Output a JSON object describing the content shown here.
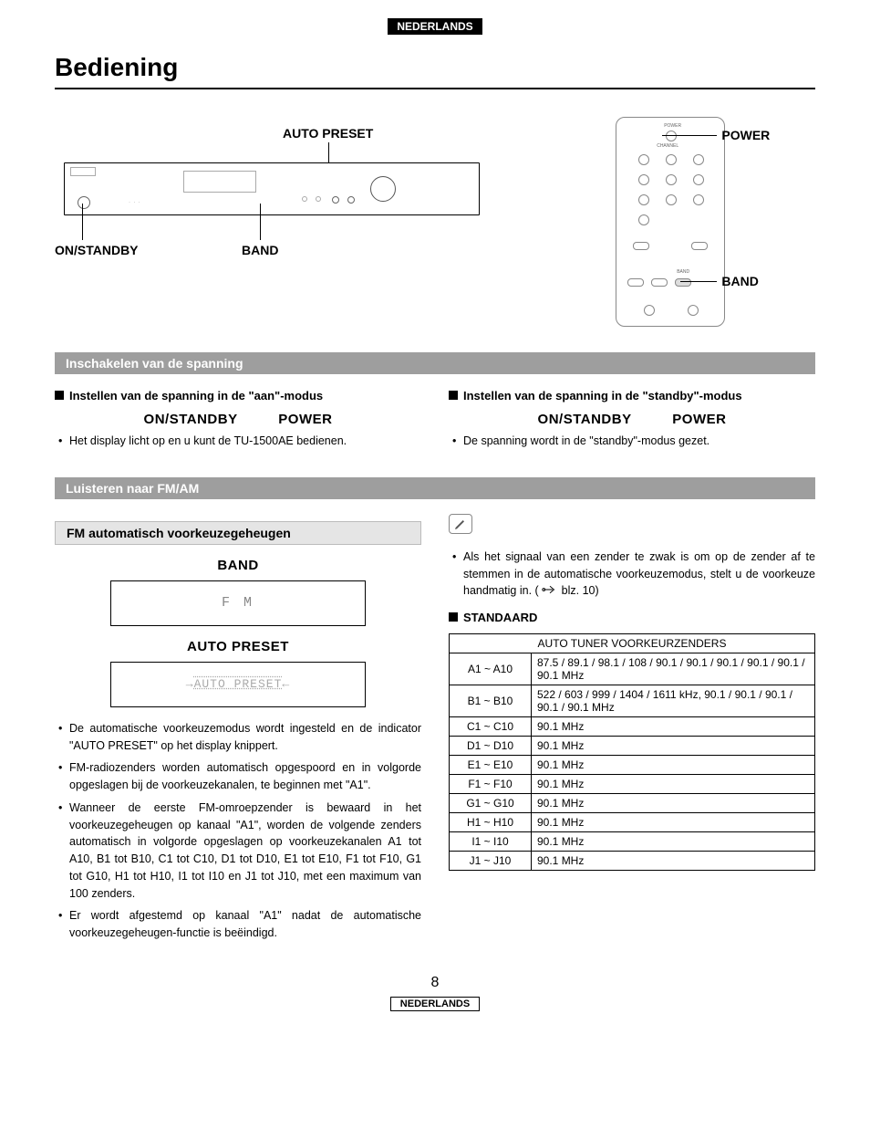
{
  "page": {
    "language_badge": "NEDERLANDS",
    "title": "Bediening",
    "page_number": "8",
    "footer_badge": "NEDERLANDS"
  },
  "diagram": {
    "front_panel_labels": {
      "auto_preset": "AUTO PRESET",
      "on_standby": "ON/STANDBY",
      "band": "BAND"
    },
    "remote_labels": {
      "power": "POWER",
      "band": "BAND"
    }
  },
  "section1": {
    "bar": "Inschakelen van de spanning",
    "left_head": "Instellen van de spanning in de \"aan\"-modus",
    "right_head": "Instellen van de spanning in de \"standby\"-modus",
    "label_onstandby": "ON/STANDBY",
    "label_power": "POWER",
    "left_bullet": "Het display licht op en u kunt de TU-1500AE bedienen.",
    "right_bullet": "De spanning wordt in de \"standby\"-modus gezet."
  },
  "section2": {
    "bar": "Luisteren naar FM/AM",
    "sub_bar": "FM automatisch voorkeuzegeheugen",
    "band_label": "BAND",
    "band_display": "F M",
    "autopreset_label": "AUTO PRESET",
    "autopreset_display": "AUTO PRESET",
    "bullets": [
      "De automatische voorkeuzemodus wordt ingesteld en de indicator \"AUTO PRESET\" op het display knippert.",
      "FM-radiozenders worden automatisch opgespoord en in volgorde opgeslagen bij de voorkeuzekanalen, te beginnen met \"A1\".",
      "Wanneer de eerste FM-omroepzender is bewaard in het voorkeuzegeheugen op kanaal \"A1\", worden de volgende zenders automatisch in volgorde opgeslagen op voorkeuzekanalen A1 tot A10, B1 tot B10, C1 tot C10, D1 tot D10, E1 tot E10, F1 tot F10, G1 tot G10, H1 tot H10, I1 tot I10 en J1 tot J10, met een maximum van 100 zenders.",
      "Er wordt afgestemd op kanaal \"A1\" nadat de automatische voorkeuzegeheugen-functie is beëindigd."
    ],
    "note_bullet": "Als het signaal van een zender te zwak is om op de zender af te stemmen in de automatische voorkeuzemodus, stelt u de voorkeuze handmatig in. (",
    "note_ref": " blz. 10)",
    "standaard": "STANDAARD",
    "table_header": "AUTO TUNER VOORKEURZENDERS",
    "table_rows": [
      {
        "range": "A1 ~ A10",
        "val": "87.5 / 89.1 / 98.1 / 108 / 90.1 / 90.1 / 90.1 / 90.1 / 90.1 / 90.1 MHz"
      },
      {
        "range": "B1 ~ B10",
        "val": "522 / 603 / 999 / 1404 / 1611 kHz, 90.1 / 90.1 / 90.1 / 90.1 / 90.1 MHz"
      },
      {
        "range": "C1 ~ C10",
        "val": "90.1 MHz"
      },
      {
        "range": "D1 ~ D10",
        "val": "90.1 MHz"
      },
      {
        "range": "E1 ~ E10",
        "val": "90.1 MHz"
      },
      {
        "range": "F1 ~ F10",
        "val": "90.1 MHz"
      },
      {
        "range": "G1 ~ G10",
        "val": "90.1 MHz"
      },
      {
        "range": "H1 ~ H10",
        "val": "90.1 MHz"
      },
      {
        "range": "I1 ~ I10",
        "val": "90.1 MHz"
      },
      {
        "range": "J1 ~ J10",
        "val": "90.1 MHz"
      }
    ]
  },
  "colors": {
    "section_bar_bg": "#9e9e9e",
    "sub_bar_bg": "#e5e5e5",
    "text": "#000000",
    "display_text": "#888888"
  }
}
